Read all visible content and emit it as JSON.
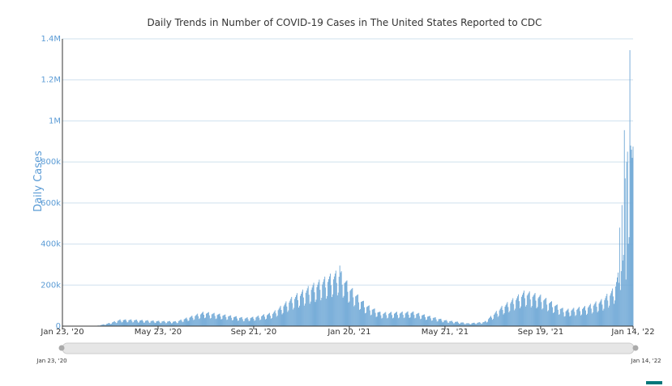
{
  "chart_data": {
    "type": "bar",
    "title": "Daily Trends in Number of COVID-19 Cases in The United States Reported to CDC",
    "ylabel": "Daily Cases",
    "xlabel": "",
    "ylim": [
      0,
      1400000
    ],
    "yticks": [
      0,
      200000,
      400000,
      600000,
      800000,
      1000000,
      1200000,
      1400000
    ],
    "ytick_labels": [
      "0",
      "200k",
      "400k",
      "600k",
      "800k",
      "1M",
      "1.2M",
      "1.4M"
    ],
    "x_range": [
      "2020-01-23",
      "2022-01-14"
    ],
    "x_ticks": [
      "2020-01-23",
      "2020-05-23",
      "2020-09-21",
      "2021-01-20",
      "2021-05-21",
      "2021-09-19",
      "2022-01-14"
    ],
    "x_tick_labels": [
      "Jan 23, '20",
      "May 23, '20",
      "Sep 21, '20",
      "Jan 20, '21",
      "May 21, '21",
      "Sep 19, '21",
      "Jan 14, '22"
    ],
    "bar_color": "#6fa8d6",
    "grid": true,
    "weekly_pattern": [
      0.95,
      1.0,
      1.05,
      1.1,
      0.85,
      0.6,
      0.65
    ],
    "peaks": [
      {
        "date": "2021-01-08",
        "value": 295000
      },
      {
        "date": "2021-12-28",
        "value": 480000
      },
      {
        "date": "2021-12-31",
        "value": 590000
      },
      {
        "date": "2022-01-03",
        "value": 955000
      },
      {
        "date": "2022-01-04",
        "value": 720000
      },
      {
        "date": "2022-01-06",
        "value": 800000
      },
      {
        "date": "2022-01-07",
        "value": 850000
      },
      {
        "date": "2022-01-10",
        "value": 1345000
      },
      {
        "date": "2022-01-11",
        "value": 880000
      },
      {
        "date": "2022-01-12",
        "value": 860000
      },
      {
        "date": "2022-01-13",
        "value": 820000
      },
      {
        "date": "2022-01-14",
        "value": 875000
      }
    ],
    "trend": [
      [
        "2020-01-23",
        0
      ],
      [
        "2020-03-05",
        300
      ],
      [
        "2020-03-20",
        12000
      ],
      [
        "2020-04-05",
        30000
      ],
      [
        "2020-04-20",
        30000
      ],
      [
        "2020-05-23",
        24000
      ],
      [
        "2020-06-15",
        22000
      ],
      [
        "2020-07-20",
        65000
      ],
      [
        "2020-08-10",
        55000
      ],
      [
        "2020-09-10",
        38000
      ],
      [
        "2020-09-21",
        42000
      ],
      [
        "2020-10-15",
        62000
      ],
      [
        "2020-11-10",
        135000
      ],
      [
        "2020-11-30",
        180000
      ],
      [
        "2020-12-15",
        210000
      ],
      [
        "2021-01-08",
        255000
      ],
      [
        "2021-01-20",
        185000
      ],
      [
        "2021-02-10",
        100000
      ],
      [
        "2021-03-01",
        62000
      ],
      [
        "2021-04-10",
        66000
      ],
      [
        "2021-05-21",
        28000
      ],
      [
        "2021-06-20",
        13000
      ],
      [
        "2021-07-10",
        20000
      ],
      [
        "2021-08-01",
        90000
      ],
      [
        "2021-08-30",
        160000
      ],
      [
        "2021-09-19",
        140000
      ],
      [
        "2021-10-20",
        75000
      ],
      [
        "2021-11-15",
        90000
      ],
      [
        "2021-12-05",
        120000
      ],
      [
        "2021-12-20",
        170000
      ],
      [
        "2022-01-14",
        450000
      ]
    ],
    "navigator": {
      "start_label": "Jan 23, '20",
      "end_label": "Jan 14, '22"
    }
  }
}
